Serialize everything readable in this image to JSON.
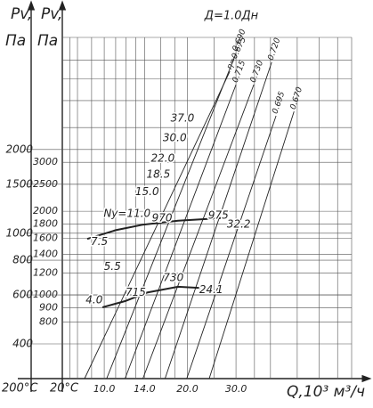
{
  "chart_data": {
    "type": "nomogram",
    "title": "Д=1.0Дн",
    "y_label": "Pv,",
    "y_unit": "Па",
    "y2_label": "Pv,",
    "y2_unit": "Па",
    "y_temp": "20°С",
    "y2_temp": "200°С",
    "x_label": "Q,10³ м³/ч",
    "log_x": true,
    "log_y": true,
    "xlim": [
      7.05,
      78.7
    ],
    "xticks": [
      {
        "value": 10,
        "label": "10.0"
      },
      {
        "value": 14,
        "label": "14.0"
      },
      {
        "value": 20,
        "label": "20.0"
      },
      {
        "value": 30,
        "label": "30.0"
      }
    ],
    "xgrid": [
      7.5,
      8,
      9,
      11,
      12,
      13,
      16,
      18,
      25,
      35,
      40,
      50,
      60,
      70
    ],
    "ylim": [
      500,
      8440
    ],
    "yticks": [
      800,
      900,
      1000,
      1200,
      1400,
      1600,
      1800,
      2000,
      2500,
      3000
    ],
    "ygrid": [
      4000,
      5000,
      6000,
      7000
    ],
    "y2lim": [
      300,
      5060
    ],
    "y2ticks": [
      400,
      600,
      800,
      1000,
      1500,
      2000
    ],
    "grid": true,
    "color": "#222222",
    "series": [
      {
        "name": "η=0.675",
        "x": [
          8.49,
          28.5
        ],
        "values": [
          500,
          6370
        ]
      },
      {
        "name": "0.690",
        "x": [
          10.2,
          30.0
        ],
        "values": [
          500,
          7400
        ]
      },
      {
        "name": "0.715",
        "x": [
          11.9,
          30.0
        ],
        "values": [
          500,
          5710
        ]
      },
      {
        "name": "0.730",
        "x": [
          13.8,
          34.8
        ],
        "values": [
          500,
          5710
        ]
      },
      {
        "name": "0.720",
        "x": [
          16.6,
          40.4
        ],
        "values": [
          500,
          6870
        ]
      },
      {
        "name": "0.695",
        "x": [
          19.9,
          41.9
        ],
        "values": [
          500,
          4410
        ]
      },
      {
        "name": "0.670",
        "x": [
          24.0,
          48.7
        ],
        "values": [
          500,
          4570
        ]
      }
    ],
    "curves": [
      {
        "x": [
          8.68,
          11.0,
          13.8,
          18.5,
          26.9
        ],
        "values": [
          1590,
          1710,
          1790,
          1850,
          1890
        ]
      },
      {
        "x": [
          9.85,
          11.9,
          14.3,
          18.5,
          22.3
        ],
        "values": [
          902,
          950,
          1020,
          1070,
          1060
        ]
      }
    ],
    "annotations": [
      {
        "text": "37.0",
        "x": 19.2,
        "y": 4310
      },
      {
        "text": "30.0",
        "x": 18.0,
        "y": 3660
      },
      {
        "text": "22.0",
        "x": 16.3,
        "y": 3090
      },
      {
        "text": "18.5",
        "x": 15.7,
        "y": 2710
      },
      {
        "text": "15.0",
        "x": 14.3,
        "y": 2350
      },
      {
        "text": "Ny=11.0",
        "x": 12.1,
        "y": 1960
      },
      {
        "text": "7.5",
        "x": 9.6,
        "y": 1550
      },
      {
        "text": "5.5",
        "x": 10.7,
        "y": 1260
      },
      {
        "text": "4.0",
        "x": 9.2,
        "y": 957
      },
      {
        "text": "715",
        "x": 13.0,
        "y": 1020
      },
      {
        "text": "730",
        "x": 17.8,
        "y": 1150
      },
      {
        "text": "970",
        "x": 16.2,
        "y": 1890
      },
      {
        "text": "975",
        "x": 25.9,
        "y": 1930
      },
      {
        "text": "32.2",
        "x": 30.7,
        "y": 1790
      },
      {
        "text": "24.1",
        "x": 24.4,
        "y": 1040
      }
    ]
  }
}
